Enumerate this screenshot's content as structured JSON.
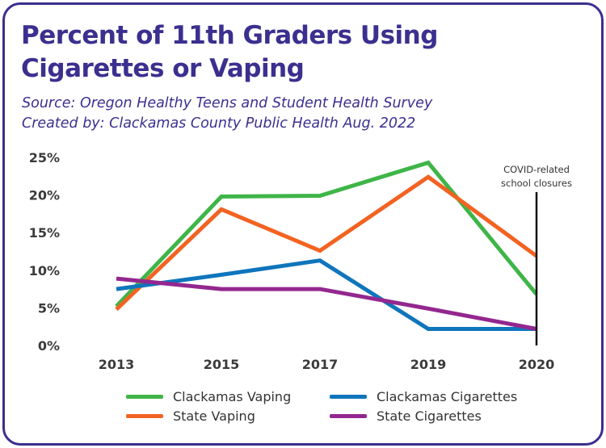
{
  "chart_data": {
    "type": "line",
    "title": "Percent of 11th Graders Using Cigarettes or Vaping",
    "subtitle_lines": [
      "Source: Oregon Healthy Teens and Student Health Survey",
      "Created by: Clackamas County Public Health Aug. 2022"
    ],
    "categories": [
      "2013",
      "2015",
      "2017",
      "2019",
      "2020"
    ],
    "y_tick_labels": [
      "0%",
      "5%",
      "10%",
      "15%",
      "20%",
      "25%"
    ],
    "ylim": [
      0,
      25
    ],
    "grid": false,
    "legend_position": "bottom",
    "annotation": {
      "text_lines": [
        "COVID-related",
        "school closures"
      ],
      "at_category": "2020"
    },
    "series": [
      {
        "name": "Clackamas Vaping",
        "color": "#3fb548",
        "values": [
          5.2,
          19.8,
          19.9,
          24.3,
          6.8
        ]
      },
      {
        "name": "State Vaping",
        "color": "#f26322",
        "values": [
          4.8,
          18.1,
          12.6,
          22.4,
          11.9
        ]
      },
      {
        "name": "Clackamas Cigarettes",
        "color": "#0f75bc",
        "values": [
          7.5,
          9.4,
          11.3,
          2.2,
          2.2
        ]
      },
      {
        "name": "State Cigarettes",
        "color": "#93278f",
        "values": [
          8.9,
          7.5,
          7.5,
          4.9,
          2.2
        ]
      }
    ]
  }
}
